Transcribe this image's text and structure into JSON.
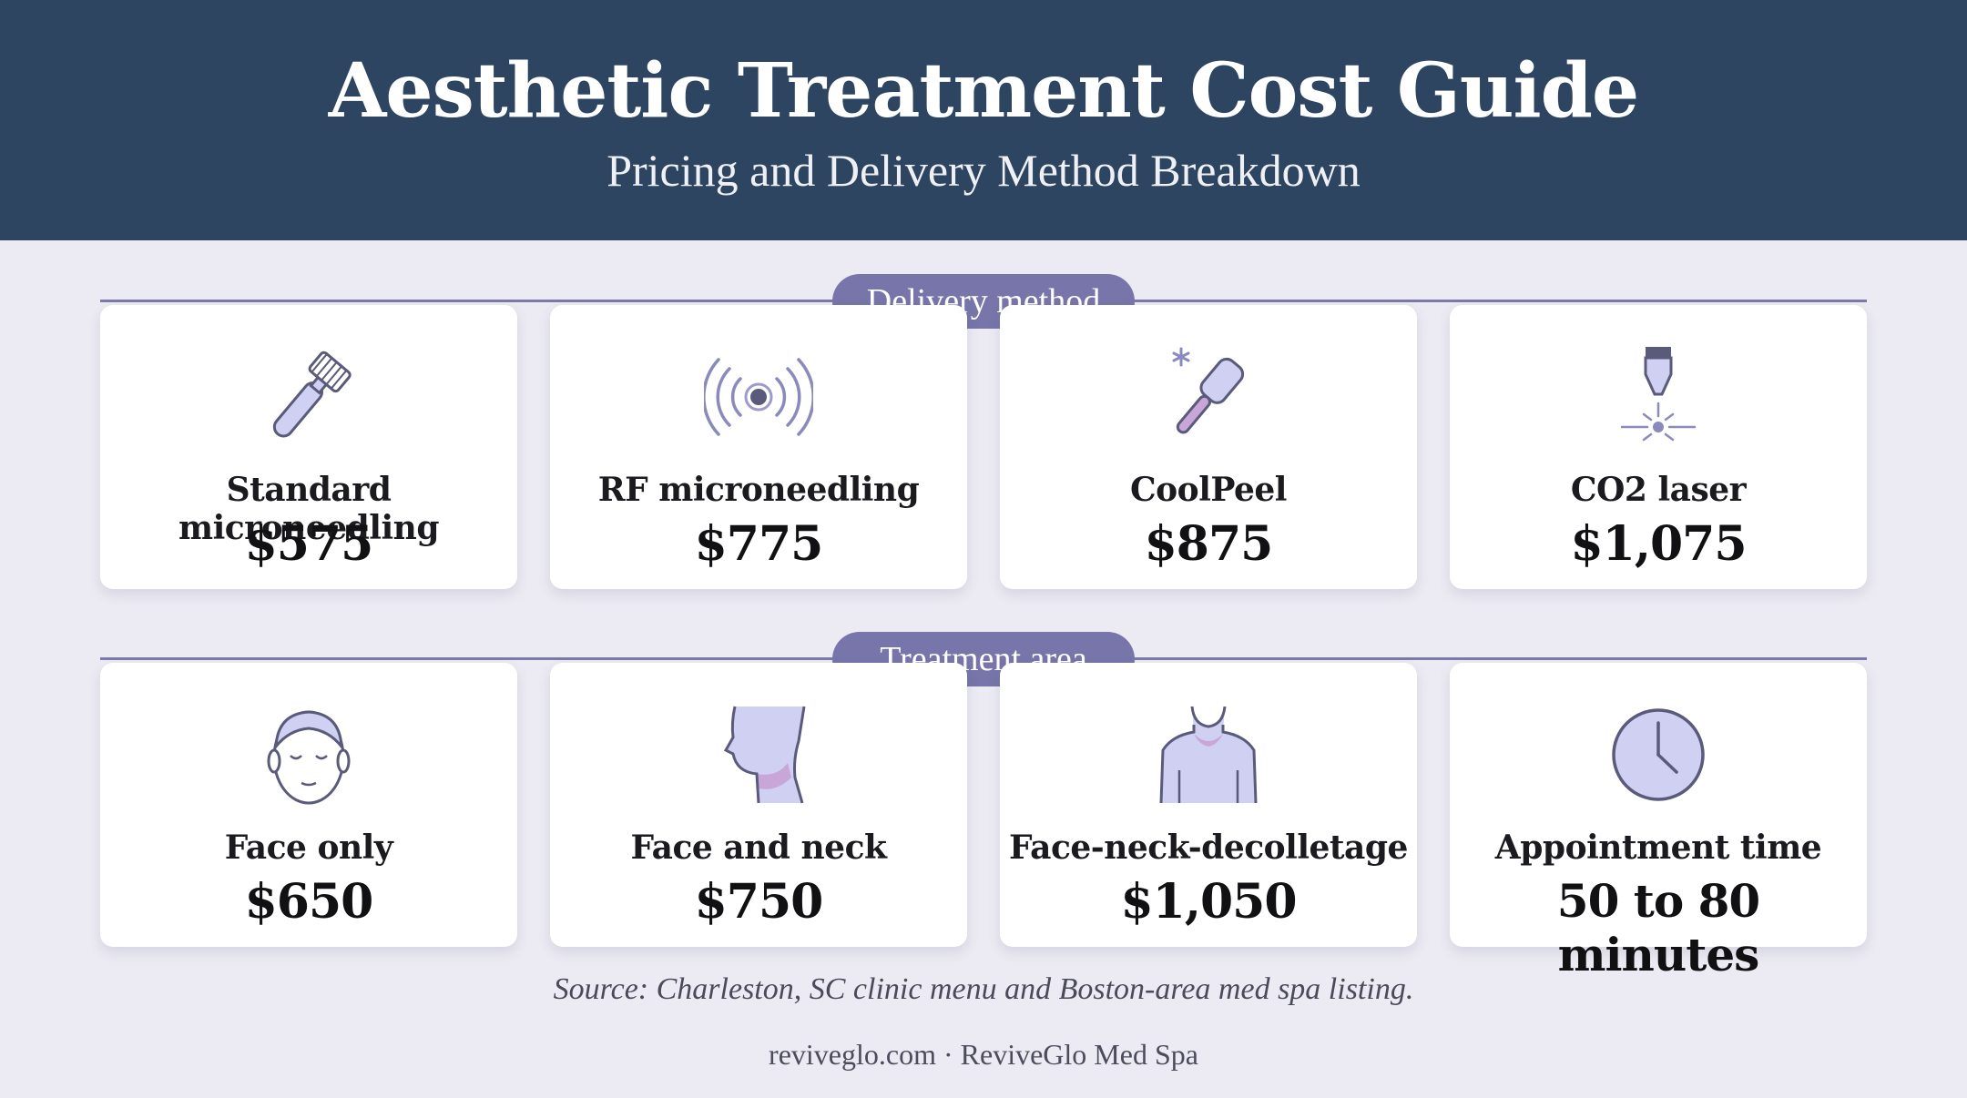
{
  "header": {
    "title": "Aesthetic Treatment Cost Guide",
    "subtitle": "Pricing and Delivery Method Breakdown"
  },
  "sections": [
    {
      "label": "Delivery method",
      "cards": [
        {
          "icon": "microneedle-roller-icon",
          "label": "Standard microneedling",
          "value": "$575"
        },
        {
          "icon": "radio-frequency-icon",
          "label": "RF microneedling",
          "value": "$775"
        },
        {
          "icon": "cooling-wand-icon",
          "label": "CoolPeel",
          "value": "$875"
        },
        {
          "icon": "laser-icon",
          "label": "CO2 laser",
          "value": "$1,075"
        }
      ]
    },
    {
      "label": "Treatment area",
      "cards": [
        {
          "icon": "face-icon",
          "label": "Face only",
          "value": "$650"
        },
        {
          "icon": "face-neck-icon",
          "label": "Face and neck",
          "value": "$750"
        },
        {
          "icon": "decolletage-icon",
          "label": "Face-neck-decolletage",
          "value": "$1,050"
        },
        {
          "icon": "clock-icon",
          "label": "Appointment time",
          "value": "50 to 80 minutes"
        }
      ]
    }
  ],
  "source": "Source: Charleston, SC clinic menu and Boston-area med spa listing.",
  "footer": "reviveglo.com · ReviveGlo Med Spa",
  "colors": {
    "header_bg": "#2d4560",
    "page_bg": "#ecebf3",
    "accent": "#7775a9",
    "icon_fill": "#cfd0f2",
    "icon_stroke": "#5a5a7a"
  }
}
